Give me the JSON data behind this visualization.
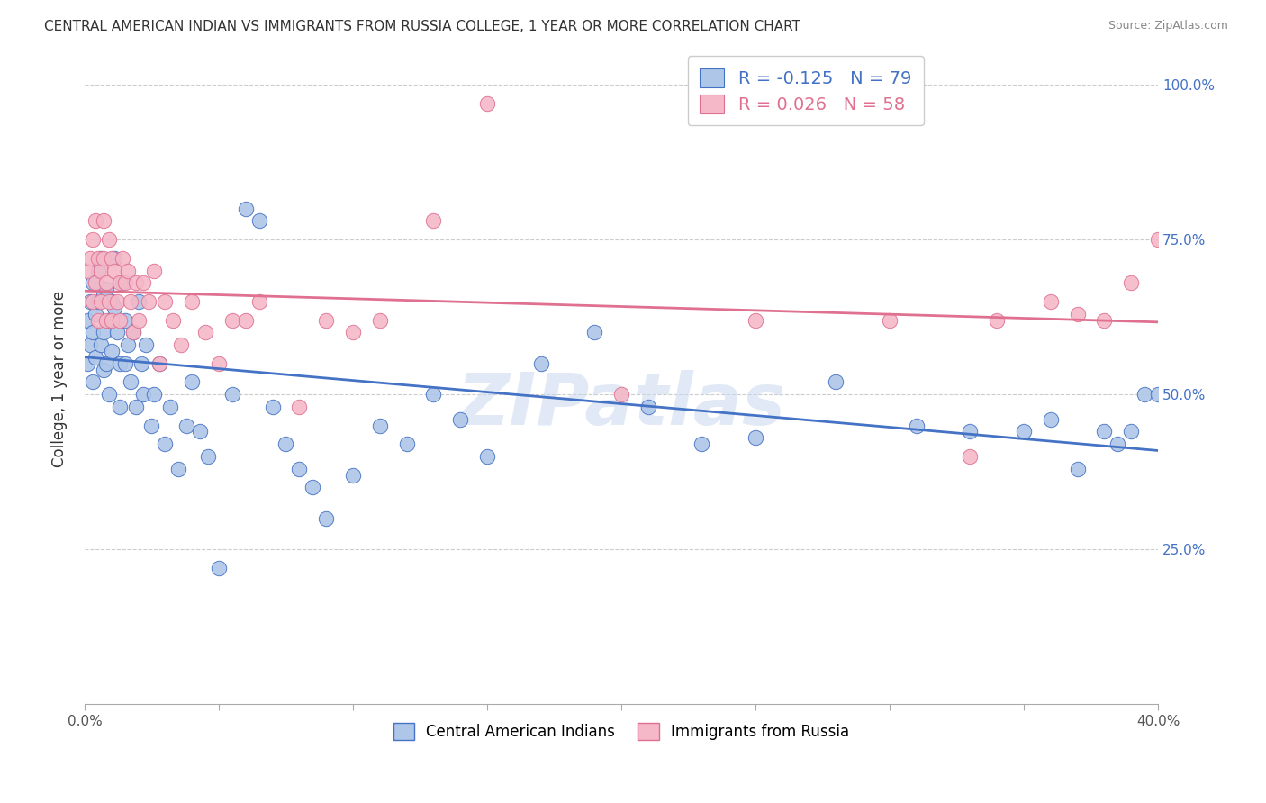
{
  "title": "CENTRAL AMERICAN INDIAN VS IMMIGRANTS FROM RUSSIA COLLEGE, 1 YEAR OR MORE CORRELATION CHART",
  "source": "Source: ZipAtlas.com",
  "ylabel": "College, 1 year or more",
  "xlim": [
    0.0,
    0.4
  ],
  "ylim": [
    0.0,
    1.05
  ],
  "blue_R": -0.125,
  "blue_N": 79,
  "pink_R": 0.026,
  "pink_N": 58,
  "blue_color": "#aec6e8",
  "pink_color": "#f4b8c8",
  "blue_line_color": "#4472c4",
  "pink_line_color": "#e07090",
  "watermark_text": "ZIPatlas",
  "legend_label_blue": "Central American Indians",
  "legend_label_pink": "Immigrants from Russia",
  "blue_x": [
    0.001,
    0.001,
    0.002,
    0.002,
    0.003,
    0.003,
    0.003,
    0.004,
    0.004,
    0.005,
    0.005,
    0.006,
    0.006,
    0.007,
    0.007,
    0.007,
    0.008,
    0.008,
    0.009,
    0.009,
    0.01,
    0.01,
    0.011,
    0.011,
    0.012,
    0.013,
    0.013,
    0.014,
    0.015,
    0.015,
    0.016,
    0.017,
    0.018,
    0.019,
    0.02,
    0.021,
    0.022,
    0.023,
    0.025,
    0.026,
    0.028,
    0.03,
    0.032,
    0.035,
    0.038,
    0.04,
    0.043,
    0.046,
    0.05,
    0.055,
    0.06,
    0.065,
    0.07,
    0.075,
    0.08,
    0.085,
    0.09,
    0.1,
    0.11,
    0.12,
    0.13,
    0.14,
    0.15,
    0.17,
    0.19,
    0.21,
    0.23,
    0.25,
    0.28,
    0.31,
    0.33,
    0.35,
    0.36,
    0.37,
    0.38,
    0.385,
    0.39,
    0.395,
    0.4
  ],
  "blue_y": [
    0.55,
    0.62,
    0.65,
    0.58,
    0.68,
    0.6,
    0.52,
    0.63,
    0.56,
    0.7,
    0.65,
    0.72,
    0.58,
    0.66,
    0.6,
    0.54,
    0.67,
    0.55,
    0.62,
    0.5,
    0.65,
    0.57,
    0.72,
    0.64,
    0.6,
    0.55,
    0.48,
    0.68,
    0.62,
    0.55,
    0.58,
    0.52,
    0.6,
    0.48,
    0.65,
    0.55,
    0.5,
    0.58,
    0.45,
    0.5,
    0.55,
    0.42,
    0.48,
    0.38,
    0.45,
    0.52,
    0.44,
    0.4,
    0.22,
    0.5,
    0.8,
    0.78,
    0.48,
    0.42,
    0.38,
    0.35,
    0.3,
    0.37,
    0.45,
    0.42,
    0.5,
    0.46,
    0.4,
    0.55,
    0.6,
    0.48,
    0.42,
    0.43,
    0.52,
    0.45,
    0.44,
    0.44,
    0.46,
    0.38,
    0.44,
    0.42,
    0.44,
    0.5,
    0.5
  ],
  "pink_x": [
    0.001,
    0.002,
    0.003,
    0.003,
    0.004,
    0.004,
    0.005,
    0.005,
    0.006,
    0.006,
    0.007,
    0.007,
    0.008,
    0.008,
    0.009,
    0.009,
    0.01,
    0.01,
    0.011,
    0.012,
    0.013,
    0.013,
    0.014,
    0.015,
    0.016,
    0.017,
    0.018,
    0.019,
    0.02,
    0.022,
    0.024,
    0.026,
    0.028,
    0.03,
    0.033,
    0.036,
    0.04,
    0.045,
    0.05,
    0.055,
    0.06,
    0.065,
    0.08,
    0.09,
    0.1,
    0.11,
    0.13,
    0.15,
    0.2,
    0.25,
    0.3,
    0.33,
    0.34,
    0.36,
    0.37,
    0.38,
    0.39,
    0.4
  ],
  "pink_y": [
    0.7,
    0.72,
    0.75,
    0.65,
    0.78,
    0.68,
    0.72,
    0.62,
    0.7,
    0.65,
    0.78,
    0.72,
    0.68,
    0.62,
    0.75,
    0.65,
    0.72,
    0.62,
    0.7,
    0.65,
    0.68,
    0.62,
    0.72,
    0.68,
    0.7,
    0.65,
    0.6,
    0.68,
    0.62,
    0.68,
    0.65,
    0.7,
    0.55,
    0.65,
    0.62,
    0.58,
    0.65,
    0.6,
    0.55,
    0.62,
    0.62,
    0.65,
    0.48,
    0.62,
    0.6,
    0.62,
    0.78,
    0.97,
    0.5,
    0.62,
    0.62,
    0.4,
    0.62,
    0.65,
    0.63,
    0.62,
    0.68,
    0.75
  ],
  "grid_color": "#cccccc",
  "grid_style": "--",
  "spine_color": "#aaaaaa",
  "title_fontsize": 11,
  "source_fontsize": 9,
  "tick_fontsize": 11,
  "ylabel_fontsize": 12,
  "right_tick_color": "#4472c4"
}
